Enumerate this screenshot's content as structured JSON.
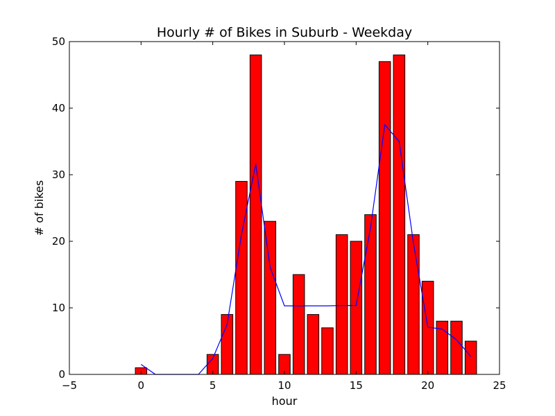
{
  "chart_data": {
    "type": "bar",
    "title": "Hourly # of Bikes in Suburb - Weekday",
    "xlabel": "hour",
    "ylabel": "# of bikes",
    "xlim": [
      -5,
      25
    ],
    "ylim": [
      0,
      50
    ],
    "xticks": [
      -5,
      0,
      5,
      10,
      15,
      20,
      25
    ],
    "yticks": [
      0,
      10,
      20,
      30,
      40,
      50
    ],
    "grid": false,
    "bar_color": "#ff0000",
    "bar_edge_color": "#000000",
    "line_color": "#0000ff",
    "series": [
      {
        "kind": "bar",
        "x": [
          0,
          1,
          2,
          3,
          4,
          5,
          6,
          7,
          8,
          9,
          10,
          11,
          12,
          13,
          14,
          15,
          16,
          17,
          18,
          19,
          20,
          21,
          22,
          23
        ],
        "values": [
          1,
          0,
          0,
          0,
          0,
          3,
          9,
          29,
          48,
          23,
          3,
          15,
          9,
          7,
          21,
          20,
          24,
          47,
          48,
          21,
          14,
          8,
          8,
          5
        ]
      },
      {
        "kind": "line",
        "x": [
          0,
          1,
          2,
          3,
          4,
          5,
          6,
          7,
          8,
          9,
          10,
          11,
          12,
          13,
          14,
          15,
          16,
          17,
          18,
          19,
          20,
          21,
          22,
          23
        ],
        "values": [
          1.5,
          0,
          0,
          0,
          0,
          2.4,
          7.5,
          21,
          31.6,
          16.1,
          10.3,
          10.3,
          10.3,
          10.3,
          10.35,
          10.35,
          22.0,
          37.5,
          35.0,
          19.7,
          7.1,
          6.8,
          5.2,
          2.7
        ]
      }
    ]
  }
}
